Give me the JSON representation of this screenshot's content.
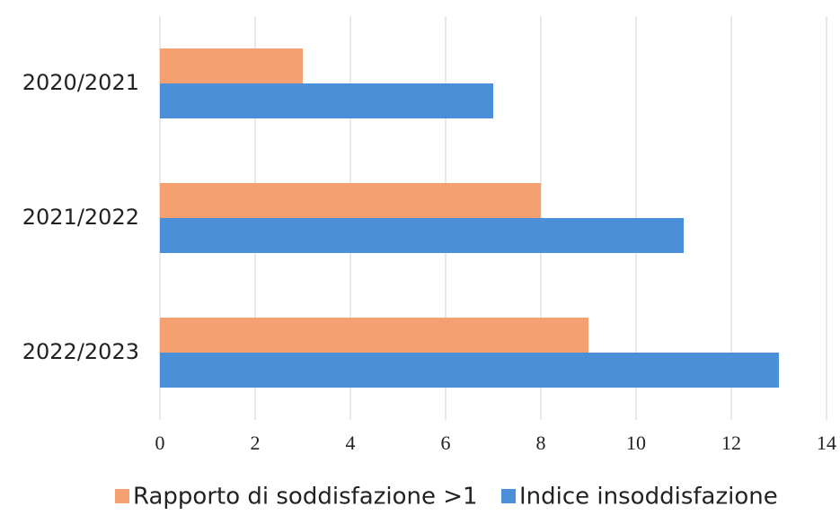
{
  "chart_data": {
    "type": "bar",
    "horizontal": true,
    "categories": [
      "2020/2021",
      "2021/2022",
      "2022/2023"
    ],
    "series": [
      {
        "name": "Rapporto di soddisfazione >1",
        "color": "#f4a071",
        "values": [
          3,
          8,
          9
        ]
      },
      {
        "name": "Indice insoddisfazione",
        "color": "#4a8fd8",
        "values": [
          7,
          11,
          13
        ]
      }
    ],
    "xlim": [
      0,
      14
    ],
    "xticks": [
      0,
      2,
      4,
      6,
      8,
      10,
      12,
      14
    ],
    "grid": true,
    "legend": "bottom"
  }
}
